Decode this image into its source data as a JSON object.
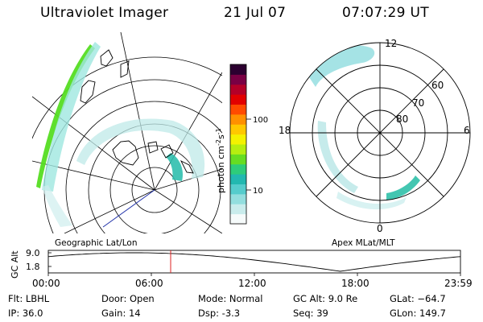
{
  "header": {
    "instrument": "Ultraviolet Imager",
    "date": "21 Jul 07",
    "time": "07:07:29 UT"
  },
  "geo_panel": {
    "caption": "Geographic Lat/Lon"
  },
  "apex_panel": {
    "caption": "Apex MLat/MLT",
    "mlt_labels": [
      "12",
      "18",
      "6",
      "0"
    ],
    "lat_labels": [
      "60",
      "70",
      "80"
    ]
  },
  "colorbar": {
    "unit_label": "photon cm",
    "exponent_1": "-2",
    "mid_s": "s",
    "exponent_2": "-1",
    "tick_100": "100",
    "tick_10": "10",
    "colors": [
      "#f6fbfb",
      "#c9ecec",
      "#93dede",
      "#55cccc",
      "#22b8b0",
      "#2ecc7a",
      "#66dd22",
      "#b6ee10",
      "#f4f200",
      "#ffc800",
      "#ff9000",
      "#ff4a00",
      "#e20000",
      "#b40028",
      "#7a0044",
      "#2c0030"
    ]
  },
  "timeline": {
    "y_axis_label": "GC Alt",
    "y_ticks": [
      "9.0",
      "1.8"
    ],
    "x_ticks": [
      "00:00",
      "06:00",
      "12:00",
      "18:00",
      "23:59"
    ],
    "marker_time_hours": 7.125
  },
  "info": {
    "flt": "Flt: LBHL",
    "ip": "IP: 36.0",
    "door": "Door: Open",
    "gain": "Gain: 14",
    "mode": "Mode: Normal",
    "dsp": "Dsp:    -3.3",
    "gc_alt": "GC Alt: 9.0 Re",
    "seq": "Seq: 39",
    "glat": "GLat: −64.7",
    "glon": "GLon: 149.7"
  }
}
